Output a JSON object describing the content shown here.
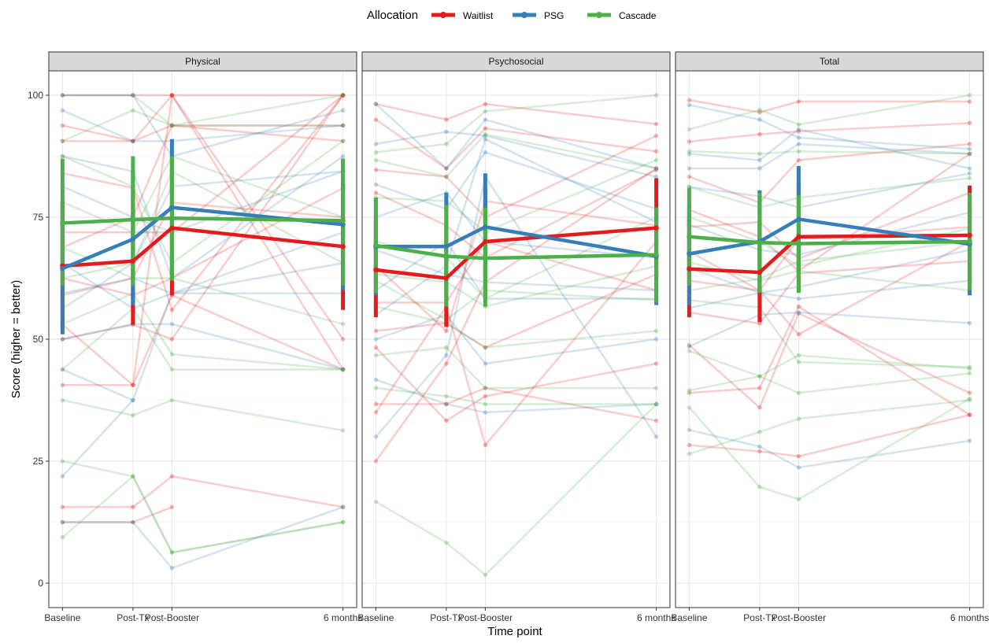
{
  "chart_data": {
    "type": "line",
    "title": "",
    "xlabel": "Time point",
    "ylabel": "Score (higher = better)",
    "x_categories": [
      "Baseline",
      "Post-Tx",
      "Post-Booster",
      "6 months"
    ],
    "x_positions": [
      0,
      1.03,
      1.6,
      4.1
    ],
    "ylim": [
      -5,
      105
    ],
    "yticks": [
      0,
      25,
      50,
      75,
      100
    ],
    "grid": true,
    "legend": {
      "title": "Allocation",
      "position": "top",
      "entries": [
        "Waitlist",
        "PSG",
        "Cascade"
      ]
    },
    "colors": {
      "Waitlist": "#e41a1c",
      "PSG": "#377eb8",
      "Cascade": "#4daf4a"
    },
    "facets": [
      {
        "name": "Physical",
        "means": [
          {
            "group": "Waitlist",
            "values": [
              65,
              66,
              72.8,
              69
            ],
            "err_low": [
              52,
              53,
              59,
              56
            ],
            "err_high": [
              78,
              79,
              87,
              82
            ]
          },
          {
            "group": "PSG",
            "values": [
              64.5,
              70.5,
              77,
              73.5
            ],
            "err_low": [
              51,
              57,
              63,
              60
            ],
            "err_high": [
              78,
              84,
              91,
              87
            ]
          },
          {
            "group": "Cascade",
            "values": [
              73.8,
              74.5,
              74.8,
              74.3
            ],
            "err_low": [
              61,
              61,
              62,
              61
            ],
            "err_high": [
              87,
              87.5,
              87.5,
              87
            ]
          }
        ],
        "individuals": {
          "Waitlist": [
            [
              100,
              100,
              100,
              100
            ],
            [
              93.8,
              90.6,
              93.8,
              93.8
            ],
            [
              90.6,
              90.6,
              100,
              50
            ],
            [
              84,
              81,
              56,
              100
            ],
            [
              71.9,
              71.9,
              71.9,
              100
            ],
            [
              59,
              62.5,
              78,
              75
            ],
            [
              53,
              40.6,
              100,
              43.8
            ],
            [
              50,
              53,
              50,
              100
            ],
            [
              40.6,
              40.6,
              59,
              43.8
            ],
            [
              15.6,
              15.6,
              21.9,
              15.6
            ],
            [
              12.5,
              12.5,
              15.6,
              null
            ],
            [
              62.5,
              59,
              62.5,
              81
            ],
            [
              68.8,
              75,
              93.8,
              90.6
            ]
          ],
          "PSG": [
            [
              100,
              100,
              87.5,
              96.9
            ],
            [
              96.9,
              90.6,
              90.6,
              93.8
            ],
            [
              87.5,
              84.4,
              62.5,
              87.5
            ],
            [
              81.3,
              75,
              71.9,
              84.4
            ],
            [
              65.6,
              56.3,
              59.4,
              71.9
            ],
            [
              59.4,
              62.5,
              59.4,
              59.4
            ],
            [
              50,
              53.1,
              53.1,
              43.8
            ],
            [
              43.8,
              37.5,
              59.4,
              65.6
            ],
            [
              21.9,
              37.5,
              null,
              null
            ],
            [
              12.5,
              12.5,
              3.1,
              15.6
            ],
            [
              56.3,
              65.6,
              81.3,
              84.4
            ]
          ],
          "Cascade": [
            [
              100,
              100,
              93.8,
              100
            ],
            [
              90.6,
              96.9,
              93.8,
              93.8
            ],
            [
              87.5,
              81.3,
              65.6,
              90.6
            ],
            [
              78.1,
              71.9,
              87.5,
              75
            ],
            [
              68.8,
              62.5,
              62.5,
              53.1
            ],
            [
              53.1,
              59.4,
              46.9,
              43.8
            ],
            [
              43.8,
              56.3,
              43.8,
              43.8
            ],
            [
              37.5,
              34.4,
              37.5,
              31.3
            ],
            [
              25,
              21.9,
              6.3,
              12.5
            ],
            [
              9.4,
              21.9,
              6.3,
              12.5
            ],
            [
              62.5,
              65.6,
              84.4,
              65.6
            ]
          ]
        }
      },
      {
        "name": "Psychosocial",
        "means": [
          {
            "group": "Waitlist",
            "values": [
              64.2,
              62.5,
              70,
              72.8
            ],
            "err_low": [
              54.5,
              52.5,
              59,
              62.5
            ],
            "err_high": [
              74,
              72.5,
              81,
              83
            ]
          },
          {
            "group": "PSG",
            "values": [
              69,
              69,
              73,
              67
            ],
            "err_low": [
              59,
              58,
              62,
              57
            ],
            "err_high": [
              79,
              80,
              84,
              77
            ]
          },
          {
            "group": "Cascade",
            "values": [
              69.2,
              67,
              66.6,
              67.3
            ],
            "err_low": [
              59.5,
              56.7,
              56.7,
              57.5
            ],
            "err_high": [
              79,
              77.5,
              77,
              77
            ]
          }
        ],
        "individuals": {
          "Waitlist": [
            [
              98.2,
              95,
              98.2,
              94.1
            ],
            [
              95,
              85,
              93.2,
              88.5
            ],
            [
              84.7,
              83.3,
              75,
              91.7
            ],
            [
              80,
              73.3,
              66.7,
              84.7
            ],
            [
              65,
              51.7,
              78.3,
              73.3
            ],
            [
              57.5,
              57.5,
              70,
              60
            ],
            [
              51.7,
              53.3,
              48.3,
              63.3
            ],
            [
              48.3,
              33.3,
              38.3,
              45
            ],
            [
              36.7,
              36.7,
              40,
              33.3
            ],
            [
              35,
              56.7,
              28.3,
              70
            ],
            [
              25,
              45,
              61.7,
              85
            ]
          ],
          "PSG": [
            [
              98.2,
              85,
              95,
              85
            ],
            [
              90,
              92.5,
              91.7,
              83.3
            ],
            [
              81.7,
              76.7,
              88.3,
              76.7
            ],
            [
              75,
              80,
              70,
              66.7
            ],
            [
              68.3,
              63.3,
              61.7,
              60
            ],
            [
              60,
              70,
              58.3,
              58.3
            ],
            [
              50,
              55,
              45,
              50
            ],
            [
              41.7,
              36.7,
              35,
              36.7
            ],
            [
              30,
              46.7,
              83.3,
              30
            ],
            [
              55,
              65,
              91,
              74
            ]
          ],
          "Cascade": [
            [
              88.3,
              90,
              96.7,
              100
            ],
            [
              86.7,
              83.3,
              92,
              85
            ],
            [
              79,
              78.3,
              72,
              86.7
            ],
            [
              70,
              66.7,
              58.3,
              75
            ],
            [
              63.3,
              61.7,
              56.7,
              65
            ],
            [
              56.7,
              53.3,
              48.3,
              51.7
            ],
            [
              46.7,
              48.3,
              40,
              40
            ],
            [
              40,
              38.3,
              36.7,
              36.7
            ],
            [
              16.7,
              8.3,
              1.7,
              36.7
            ],
            [
              62,
              54,
              60,
              58
            ]
          ]
        }
      },
      {
        "name": "Total",
        "means": [
          {
            "group": "Waitlist",
            "values": [
              64.4,
              63.7,
              71,
              71.3
            ],
            "err_low": [
              54.5,
              53.5,
              60,
              61
            ],
            "err_high": [
              74.5,
              74,
              82,
              81.5
            ]
          },
          {
            "group": "PSG",
            "values": [
              67.5,
              70,
              74.6,
              69.5
            ],
            "err_low": [
              57,
              59.5,
              63.5,
              59
            ],
            "err_high": [
              78,
              80.5,
              85.5,
              80
            ]
          },
          {
            "group": "Cascade",
            "values": [
              71,
              69.8,
              69.6,
              70
            ],
            "err_low": [
              61,
              59.5,
              59.5,
              60
            ],
            "err_high": [
              81,
              80,
              79.5,
              80
            ]
          }
        ],
        "individuals": {
          "Waitlist": [
            [
              99,
              96.5,
              98.7,
              98.7
            ],
            [
              90.5,
              92,
              92.6,
              94.3
            ],
            [
              83.3,
              78,
              86.7,
              90
            ],
            [
              76.5,
              71,
              64,
              88
            ],
            [
              68,
              60,
              51,
              70
            ],
            [
              62,
              60,
              70.5,
              73
            ],
            [
              55.5,
              53.2,
              63.5,
              66
            ],
            [
              48.8,
              36,
              55.3,
              39
            ],
            [
              39,
              40,
              56.7,
              34.5
            ],
            [
              28.3,
              27,
              26,
              34.5
            ],
            [
              73,
              74,
              66.5,
              80
            ]
          ],
          "PSG": [
            [
              98,
              95,
              91.3,
              89
            ],
            [
              88,
              86.7,
              93,
              85
            ],
            [
              81.2,
              79.3,
              77,
              84
            ],
            [
              73.5,
              68.3,
              67.3,
              76
            ],
            [
              64.6,
              59.5,
              60.7,
              68.3
            ],
            [
              56.4,
              59.5,
              58.3,
              62
            ],
            [
              48.5,
              55,
              55.5,
              53.3
            ],
            [
              31.4,
              28,
              23.7,
              29.2
            ],
            [
              85,
              85,
              90,
              88
            ]
          ],
          "Cascade": [
            [
              93,
              97,
              94,
              100
            ],
            [
              88.5,
              88,
              88.5,
              88
            ],
            [
              81.2,
              77,
              79,
              83
            ],
            [
              75,
              70,
              65,
              72.7
            ],
            [
              65.8,
              62,
              64,
              60
            ],
            [
              58,
              56.5,
              45.3,
              44.3
            ],
            [
              47.6,
              42.4,
              46.7,
              44
            ],
            [
              39.5,
              42.4,
              39,
              43
            ],
            [
              36,
              19.7,
              17.2,
              37.8
            ],
            [
              26.5,
              31,
              33.7,
              37.5
            ],
            [
              60,
              62.4,
              66,
              70
            ]
          ]
        }
      }
    ]
  }
}
